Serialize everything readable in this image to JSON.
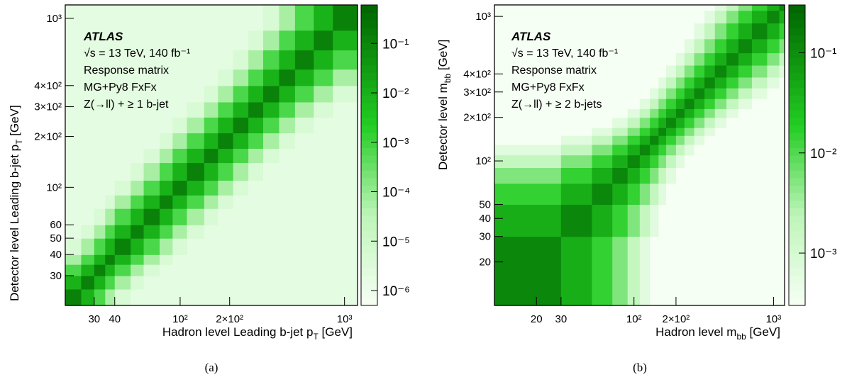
{
  "figure": {
    "panels": [
      {
        "caption": "(a)",
        "atlas_label": "ATLAS",
        "annotation_lines": [
          "√s = 13 TeV, 140 fb⁻¹",
          "Response matrix",
          "MG+Py8 FxFx",
          "Z(→ll) + ≥ 1 b-jet"
        ]
      },
      {
        "caption": "(b)",
        "atlas_label": "ATLAS",
        "annotation_lines": [
          "√s = 13 TeV, 140 fb⁻¹",
          "Response matrix",
          "MG+Py8 FxFx",
          "Z(→ll) + ≥ 2 b-jets"
        ]
      }
    ]
  },
  "chart_data": [
    {
      "type": "heatmap",
      "xlabel": "Hadron level Leading b-jet p_T [GeV]",
      "ylabel": "Detector level Leading b-jet p_T [GeV]",
      "x_scale": "log",
      "y_scale": "log",
      "z_scale": "log",
      "xlim": [
        20,
        1200
      ],
      "ylim": [
        20,
        1200
      ],
      "zlim": [
        5e-07,
        0.6
      ],
      "x_ticks": [
        {
          "value": 30,
          "label": "30"
        },
        {
          "value": 40,
          "label": "40"
        },
        {
          "value": 100,
          "label": "10²"
        },
        {
          "value": 200,
          "label": "2×10²"
        },
        {
          "value": 1000,
          "label": "10³"
        }
      ],
      "y_ticks": [
        {
          "value": 30,
          "label": "30"
        },
        {
          "value": 40,
          "label": "40"
        },
        {
          "value": 50,
          "label": "50"
        },
        {
          "value": 60,
          "label": "60"
        },
        {
          "value": 100,
          "label": "10²"
        },
        {
          "value": 200,
          "label": "2×10²"
        },
        {
          "value": 300,
          "label": "3×10²"
        },
        {
          "value": 400,
          "label": "4×10²"
        },
        {
          "value": 1000,
          "label": "10³"
        }
      ],
      "z_ticks": [
        {
          "value": 0.1,
          "label": "10⁻¹"
        },
        {
          "value": 0.01,
          "label": "10⁻²"
        },
        {
          "value": 0.001,
          "label": "10⁻³"
        },
        {
          "value": 0.0001,
          "label": "10⁻⁴"
        },
        {
          "value": 1e-05,
          "label": "10⁻⁵"
        },
        {
          "value": 1e-06,
          "label": "10⁻⁶"
        }
      ],
      "bin_edges": [
        20,
        25,
        30,
        35,
        40,
        50,
        60,
        75,
        90,
        110,
        140,
        170,
        210,
        260,
        320,
        400,
        500,
        650,
        850,
        1200
      ],
      "z_model": {
        "diagonal": 0.12,
        "band_decay_decades_per_bin": 1.1,
        "min": 2e-06
      },
      "grid": false
    },
    {
      "type": "heatmap",
      "xlabel": "Hadron level m_bb [GeV]",
      "ylabel": "Detector level m_bb [GeV]",
      "x_scale": "log",
      "y_scale": "log",
      "z_scale": "log",
      "xlim": [
        10,
        1200
      ],
      "ylim": [
        10,
        1200
      ],
      "zlim": [
        0.0003,
        0.3
      ],
      "x_ticks": [
        {
          "value": 20,
          "label": "20"
        },
        {
          "value": 30,
          "label": "30"
        },
        {
          "value": 100,
          "label": "10²"
        },
        {
          "value": 200,
          "label": "2×10²"
        },
        {
          "value": 1000,
          "label": "10³"
        }
      ],
      "y_ticks": [
        {
          "value": 20,
          "label": "20"
        },
        {
          "value": 30,
          "label": "30"
        },
        {
          "value": 40,
          "label": "40"
        },
        {
          "value": 50,
          "label": "50"
        },
        {
          "value": 100,
          "label": "10²"
        },
        {
          "value": 200,
          "label": "2×10²"
        },
        {
          "value": 300,
          "label": "3×10²"
        },
        {
          "value": 400,
          "label": "4×10²"
        },
        {
          "value": 1000,
          "label": "10³"
        }
      ],
      "z_ticks": [
        {
          "value": 0.1,
          "label": "10⁻¹"
        },
        {
          "value": 0.01,
          "label": "10⁻²"
        },
        {
          "value": 0.001,
          "label": "10⁻³"
        }
      ],
      "bin_edges": [
        10,
        30,
        50,
        70,
        90,
        110,
        130,
        150,
        170,
        200,
        230,
        270,
        320,
        380,
        460,
        560,
        700,
        900,
        1100,
        1200
      ],
      "z_model": {
        "diagonal": 0.12,
        "band_decay_decades_per_bin": 0.45,
        "min": 0.0003
      },
      "grid": false
    }
  ]
}
